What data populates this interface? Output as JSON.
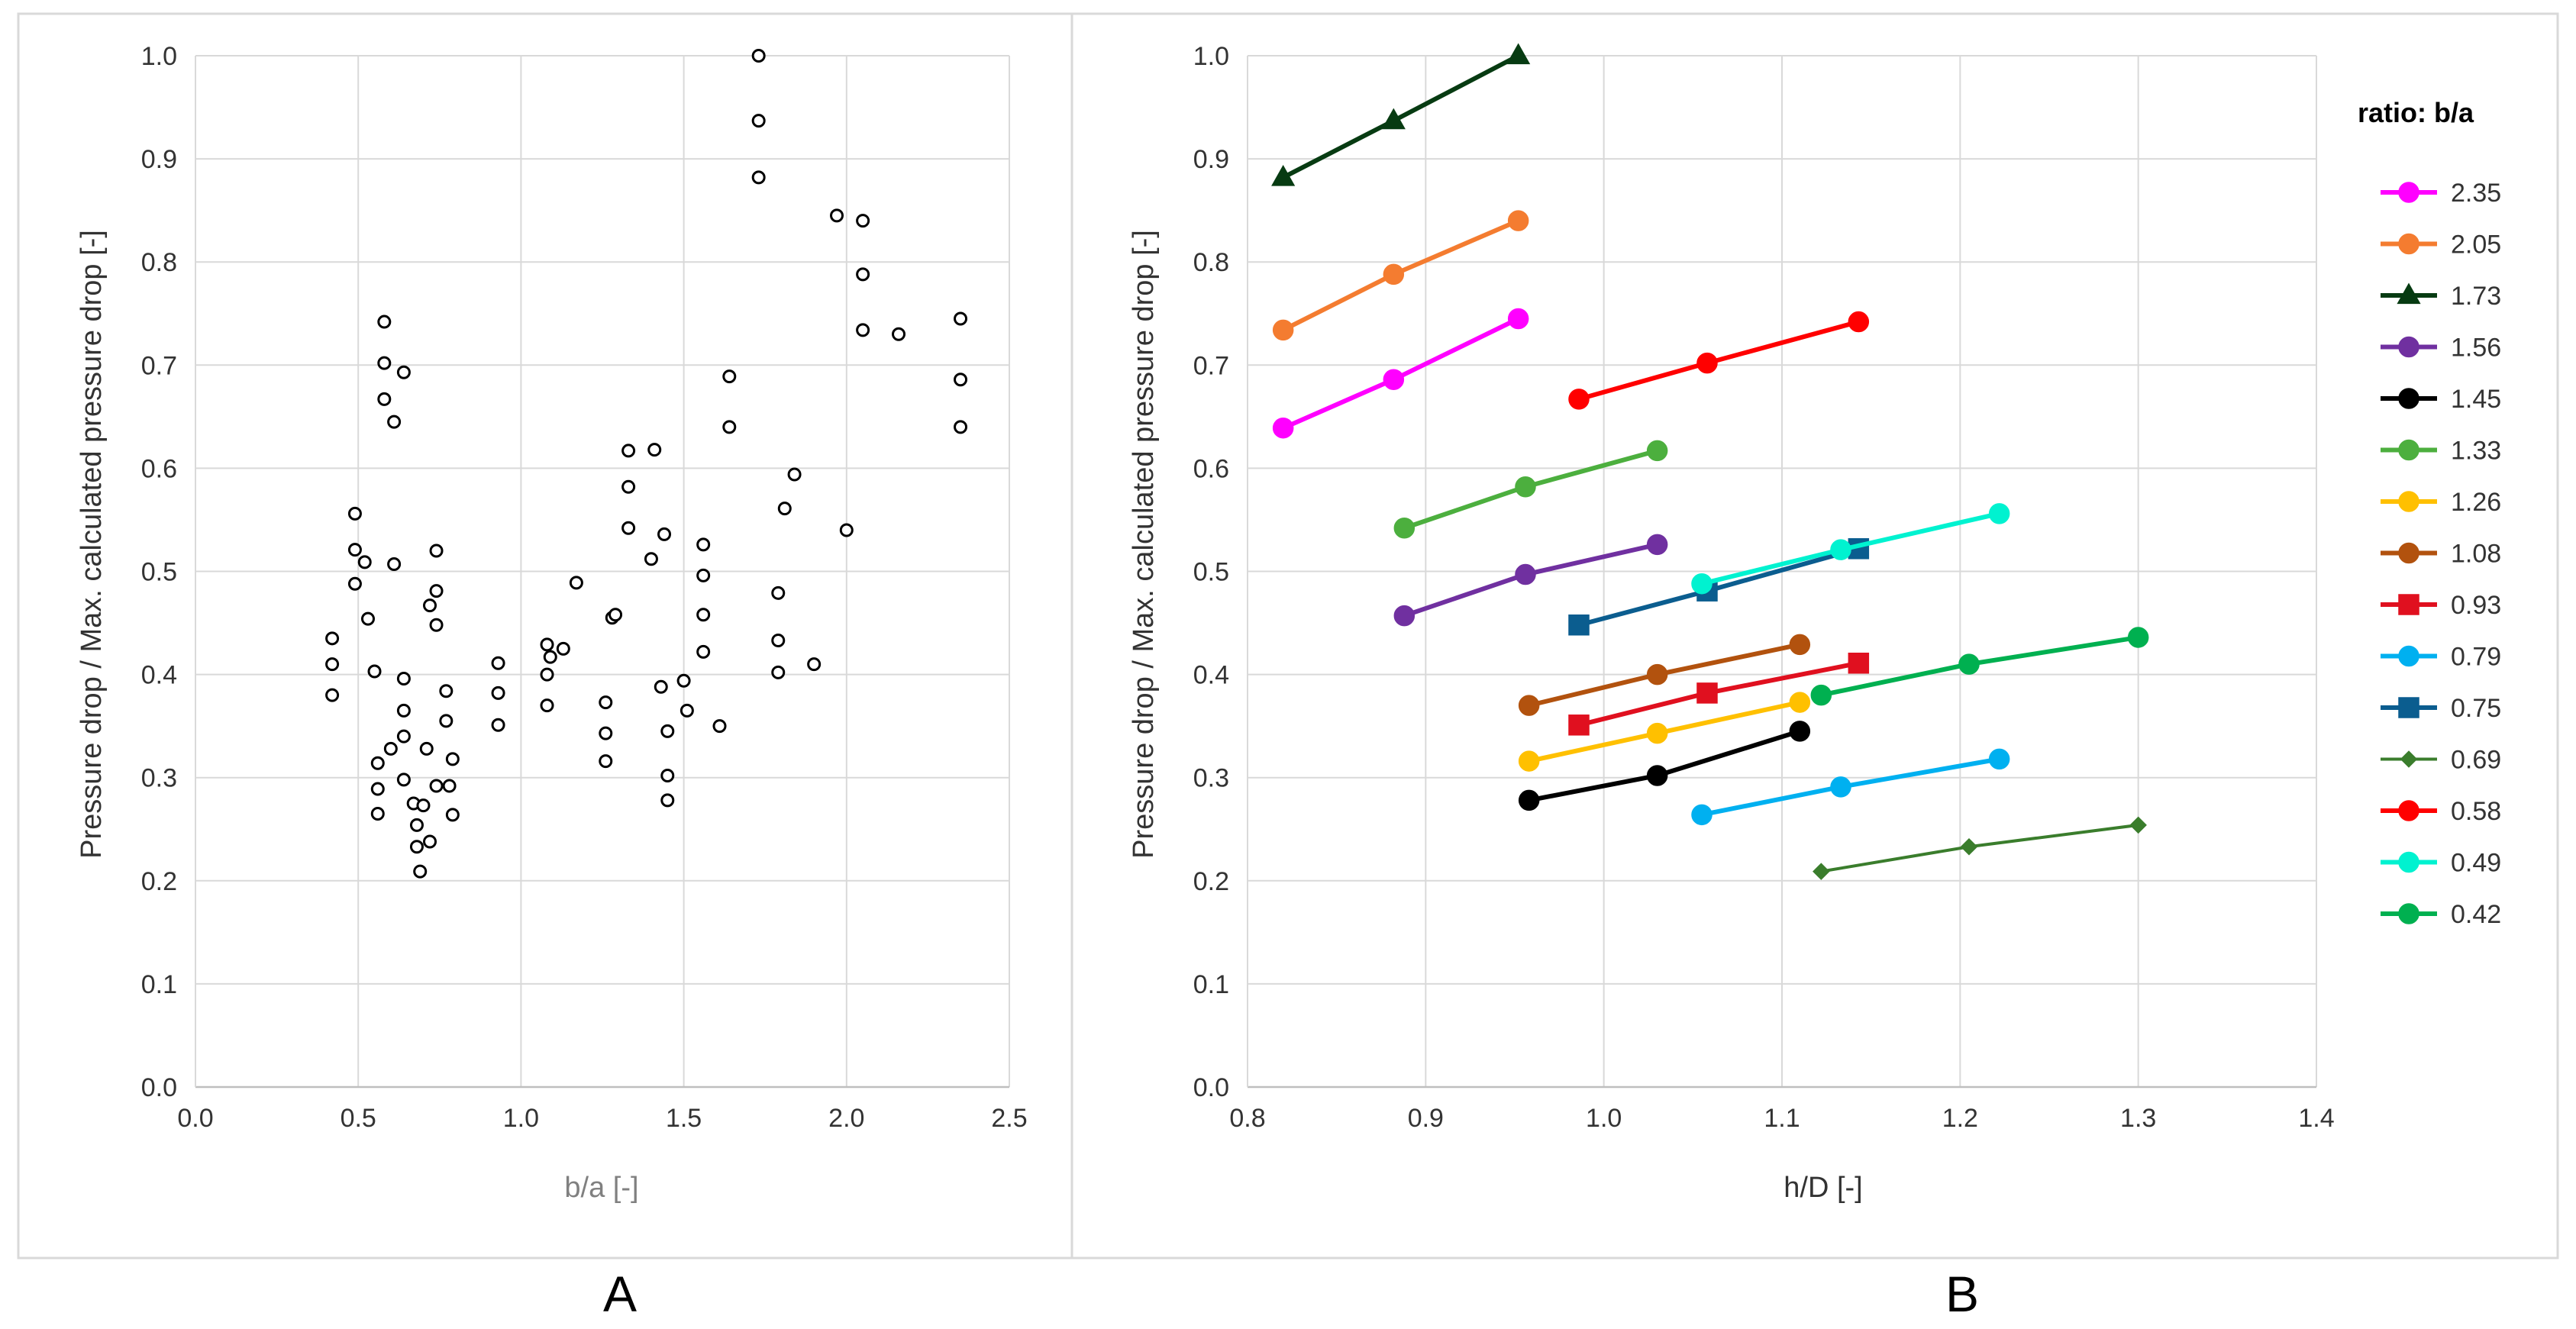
{
  "figure": {
    "panel_a_letter": "A",
    "panel_b_letter": "B"
  },
  "chart_data": [
    {
      "type": "scatter",
      "panel": "A",
      "title": "",
      "xlabel": "b/a [-]",
      "ylabel": "Pressure drop / Max. calculated pressure drop [-]",
      "xlim": [
        0,
        2.5
      ],
      "ylim": [
        0,
        1.0
      ],
      "xticks": [
        "0.0",
        "0.5",
        "1.0",
        "1.5",
        "2.0",
        "2.5"
      ],
      "yticks": [
        "0.0",
        "0.1",
        "0.2",
        "0.3",
        "0.4",
        "0.5",
        "0.6",
        "0.7",
        "0.8",
        "0.9",
        "1.0"
      ],
      "grid": true,
      "marker": "open-circle",
      "points": [
        [
          0.42,
          0.435
        ],
        [
          0.42,
          0.41
        ],
        [
          0.42,
          0.38
        ],
        [
          0.49,
          0.556
        ],
        [
          0.49,
          0.521
        ],
        [
          0.49,
          0.488
        ],
        [
          0.52,
          0.509
        ],
        [
          0.53,
          0.454
        ],
        [
          0.55,
          0.403
        ],
        [
          0.56,
          0.314
        ],
        [
          0.56,
          0.289
        ],
        [
          0.56,
          0.265
        ],
        [
          0.58,
          0.742
        ],
        [
          0.58,
          0.702
        ],
        [
          0.58,
          0.667
        ],
        [
          0.6,
          0.328
        ],
        [
          0.61,
          0.645
        ],
        [
          0.61,
          0.507
        ],
        [
          0.64,
          0.693
        ],
        [
          0.64,
          0.396
        ],
        [
          0.64,
          0.365
        ],
        [
          0.64,
          0.34
        ],
        [
          0.64,
          0.298
        ],
        [
          0.67,
          0.275
        ],
        [
          0.68,
          0.254
        ],
        [
          0.68,
          0.233
        ],
        [
          0.69,
          0.209
        ],
        [
          0.7,
          0.273
        ],
        [
          0.71,
          0.328
        ],
        [
          0.72,
          0.467
        ],
        [
          0.72,
          0.238
        ],
        [
          0.74,
          0.52
        ],
        [
          0.74,
          0.481
        ],
        [
          0.74,
          0.448
        ],
        [
          0.74,
          0.292
        ],
        [
          0.77,
          0.384
        ],
        [
          0.77,
          0.355
        ],
        [
          0.78,
          0.292
        ],
        [
          0.79,
          0.318
        ],
        [
          0.79,
          0.264
        ],
        [
          0.93,
          0.411
        ],
        [
          0.93,
          0.382
        ],
        [
          0.93,
          0.351
        ],
        [
          1.08,
          0.429
        ],
        [
          1.08,
          0.4
        ],
        [
          1.08,
          0.37
        ],
        [
          1.09,
          0.417
        ],
        [
          1.13,
          0.425
        ],
        [
          1.17,
          0.489
        ],
        [
          1.26,
          0.373
        ],
        [
          1.26,
          0.343
        ],
        [
          1.26,
          0.316
        ],
        [
          1.28,
          0.455
        ],
        [
          1.29,
          0.458
        ],
        [
          1.33,
          0.617
        ],
        [
          1.33,
          0.582
        ],
        [
          1.33,
          0.542
        ],
        [
          1.4,
          0.512
        ],
        [
          1.41,
          0.618
        ],
        [
          1.43,
          0.388
        ],
        [
          1.44,
          0.536
        ],
        [
          1.45,
          0.345
        ],
        [
          1.45,
          0.302
        ],
        [
          1.45,
          0.278
        ],
        [
          1.5,
          0.394
        ],
        [
          1.51,
          0.365
        ],
        [
          1.56,
          0.526
        ],
        [
          1.56,
          0.496
        ],
        [
          1.56,
          0.458
        ],
        [
          1.56,
          0.422
        ],
        [
          1.61,
          0.35
        ],
        [
          1.64,
          0.689
        ],
        [
          1.64,
          0.64
        ],
        [
          1.73,
          1.0
        ],
        [
          1.73,
          0.937
        ],
        [
          1.73,
          0.882
        ],
        [
          1.79,
          0.479
        ],
        [
          1.79,
          0.433
        ],
        [
          1.79,
          0.402
        ],
        [
          1.81,
          0.561
        ],
        [
          1.84,
          0.594
        ],
        [
          1.9,
          0.41
        ],
        [
          1.97,
          0.845
        ],
        [
          2.0,
          0.54
        ],
        [
          2.05,
          0.84
        ],
        [
          2.05,
          0.788
        ],
        [
          2.05,
          0.734
        ],
        [
          2.16,
          0.73
        ],
        [
          2.35,
          0.745
        ],
        [
          2.35,
          0.686
        ],
        [
          2.35,
          0.64
        ]
      ]
    },
    {
      "type": "line",
      "panel": "B",
      "title": "",
      "xlabel": "h/D [-]",
      "ylabel": "Pressure drop / Max. calculated pressure drop [-]",
      "xlim": [
        0.8,
        1.4
      ],
      "ylim": [
        0,
        1.0
      ],
      "xticks": [
        "0.8",
        "0.9",
        "1.0",
        "1.1",
        "1.2",
        "1.3",
        "1.4"
      ],
      "yticks": [
        "0.0",
        "0.1",
        "0.2",
        "0.3",
        "0.4",
        "0.5",
        "0.6",
        "0.7",
        "0.8",
        "0.9",
        "1.0"
      ],
      "grid": true,
      "legend_title": "ratio: b/a",
      "legend_position": "right",
      "series": [
        {
          "name": "2.35",
          "color": "#ff00ff",
          "marker": "circle",
          "x": [
            0.82,
            0.882,
            0.952
          ],
          "y": [
            0.639,
            0.686,
            0.745
          ]
        },
        {
          "name": "2.05",
          "color": "#f47c30",
          "marker": "circle",
          "x": [
            0.82,
            0.882,
            0.952
          ],
          "y": [
            0.734,
            0.788,
            0.84
          ]
        },
        {
          "name": "1.73",
          "color": "#073b12",
          "marker": "triangle",
          "x": [
            0.82,
            0.882,
            0.952
          ],
          "y": [
            0.882,
            0.937,
            1.0
          ]
        },
        {
          "name": "1.56",
          "color": "#7030a0",
          "marker": "circle",
          "x": [
            0.888,
            0.956,
            1.03
          ],
          "y": [
            0.457,
            0.497,
            0.526
          ]
        },
        {
          "name": "1.45",
          "color": "#000000",
          "marker": "circle",
          "x": [
            0.958,
            1.03,
            1.11
          ],
          "y": [
            0.278,
            0.302,
            0.345
          ]
        },
        {
          "name": "1.33",
          "color": "#4caf3e",
          "marker": "circle",
          "x": [
            0.888,
            0.956,
            1.03
          ],
          "y": [
            0.542,
            0.582,
            0.617
          ]
        },
        {
          "name": "1.26",
          "color": "#ffc000",
          "marker": "circle",
          "x": [
            0.958,
            1.03,
            1.11
          ],
          "y": [
            0.316,
            0.343,
            0.373
          ]
        },
        {
          "name": "1.08",
          "color": "#b2520e",
          "marker": "circle",
          "x": [
            0.958,
            1.03,
            1.11
          ],
          "y": [
            0.37,
            0.4,
            0.429
          ]
        },
        {
          "name": "0.93",
          "color": "#e0101f",
          "marker": "square",
          "x": [
            0.986,
            1.058,
            1.143
          ],
          "y": [
            0.351,
            0.382,
            0.411
          ]
        },
        {
          "name": "0.79",
          "color": "#00b0f0",
          "marker": "circle",
          "x": [
            1.055,
            1.133,
            1.222
          ],
          "y": [
            0.264,
            0.291,
            0.318
          ]
        },
        {
          "name": "0.75",
          "color": "#0b5d8f",
          "marker": "square",
          "x": [
            0.986,
            1.058,
            1.143
          ],
          "y": [
            0.448,
            0.481,
            0.522
          ]
        },
        {
          "name": "0.69",
          "color": "#3a7d2c",
          "marker": "diamond",
          "x": [
            1.122,
            1.205,
            1.3
          ],
          "y": [
            0.209,
            0.233,
            0.254
          ]
        },
        {
          "name": "0.58",
          "color": "#ff0000",
          "marker": "circle",
          "x": [
            0.986,
            1.058,
            1.143
          ],
          "y": [
            0.667,
            0.702,
            0.742
          ]
        },
        {
          "name": "0.49",
          "color": "#00f2d0",
          "marker": "circle",
          "x": [
            1.055,
            1.133,
            1.222
          ],
          "y": [
            0.488,
            0.521,
            0.556
          ]
        },
        {
          "name": "0.42",
          "color": "#00b050",
          "marker": "circle",
          "x": [
            1.122,
            1.205,
            1.3
          ],
          "y": [
            0.38,
            0.41,
            0.436
          ]
        }
      ]
    }
  ]
}
